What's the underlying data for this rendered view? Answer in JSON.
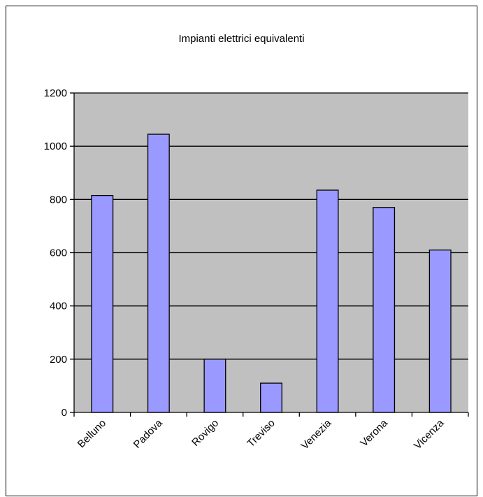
{
  "chart_data": {
    "type": "bar",
    "title": "Impianti elettrici equivalenti",
    "xlabel": "",
    "ylabel": "",
    "categories": [
      "Belluno",
      "Padova",
      "Rovigo",
      "Treviso",
      "Venezia",
      "Verona",
      "Vicenza"
    ],
    "values": [
      815,
      1045,
      200,
      110,
      835,
      770,
      610
    ],
    "ylim": [
      0,
      1200
    ],
    "yticks": [
      0,
      200,
      400,
      600,
      800,
      1000,
      1200
    ],
    "grid": true,
    "legend": "none",
    "colors": {
      "bar_fill": "#9999ff",
      "bar_stroke": "#000000",
      "plot_background": "#c0c0c0",
      "gridline": "#000000"
    }
  }
}
